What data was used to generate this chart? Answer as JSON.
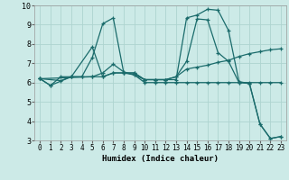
{
  "xlabel": "Humidex (Indice chaleur)",
  "xlim": [
    -0.5,
    23.5
  ],
  "ylim": [
    3,
    10
  ],
  "yticks": [
    3,
    4,
    5,
    6,
    7,
    8,
    9,
    10
  ],
  "xticks": [
    0,
    1,
    2,
    3,
    4,
    5,
    6,
    7,
    8,
    9,
    10,
    11,
    12,
    13,
    14,
    15,
    16,
    17,
    18,
    19,
    20,
    21,
    22,
    23
  ],
  "bg_color": "#cceae7",
  "line_color": "#1a6b6b",
  "grid_color": "#aed4d0",
  "lines": [
    {
      "x": [
        0,
        1,
        2,
        3,
        4,
        5,
        6,
        7,
        8,
        9,
        10,
        11,
        12,
        13,
        14,
        15,
        16,
        17,
        18,
        19,
        20,
        21,
        22,
        23
      ],
      "y": [
        6.2,
        5.85,
        6.3,
        6.3,
        6.3,
        7.3,
        9.05,
        9.35,
        6.5,
        6.5,
        6.15,
        6.15,
        6.15,
        6.15,
        9.35,
        9.5,
        9.8,
        9.75,
        8.7,
        6.05,
        5.95,
        3.85,
        3.1,
        3.2
      ]
    },
    {
      "x": [
        0,
        1,
        3,
        5,
        6,
        7,
        8,
        9,
        10,
        11,
        12,
        13,
        14,
        15,
        16,
        17,
        18,
        19,
        20,
        21,
        22,
        23
      ],
      "y": [
        6.2,
        5.85,
        6.3,
        7.85,
        6.3,
        6.5,
        6.5,
        6.5,
        6.15,
        6.15,
        6.15,
        6.3,
        7.1,
        9.3,
        9.25,
        7.55,
        7.1,
        6.0,
        5.95,
        3.85,
        3.1,
        3.2
      ]
    },
    {
      "x": [
        0,
        5,
        6,
        7,
        8,
        9,
        10,
        11,
        12,
        13,
        14,
        15,
        16,
        17,
        18,
        19,
        20,
        21,
        22,
        23
      ],
      "y": [
        6.2,
        6.3,
        6.5,
        6.95,
        6.55,
        6.4,
        6.15,
        6.15,
        6.15,
        6.3,
        6.7,
        6.8,
        6.9,
        7.05,
        7.15,
        7.35,
        7.5,
        7.6,
        7.7,
        7.75
      ]
    },
    {
      "x": [
        0,
        2,
        3,
        4,
        5,
        6,
        7,
        8,
        9,
        10,
        11,
        12,
        13,
        14,
        15,
        16,
        17,
        18,
        19,
        20,
        21,
        22,
        23
      ],
      "y": [
        6.2,
        6.1,
        6.3,
        6.3,
        6.3,
        6.3,
        6.5,
        6.5,
        6.4,
        6.0,
        6.0,
        6.0,
        6.0,
        6.0,
        6.0,
        6.0,
        6.0,
        6.0,
        6.0,
        6.0,
        6.0,
        6.0,
        6.0
      ]
    }
  ]
}
